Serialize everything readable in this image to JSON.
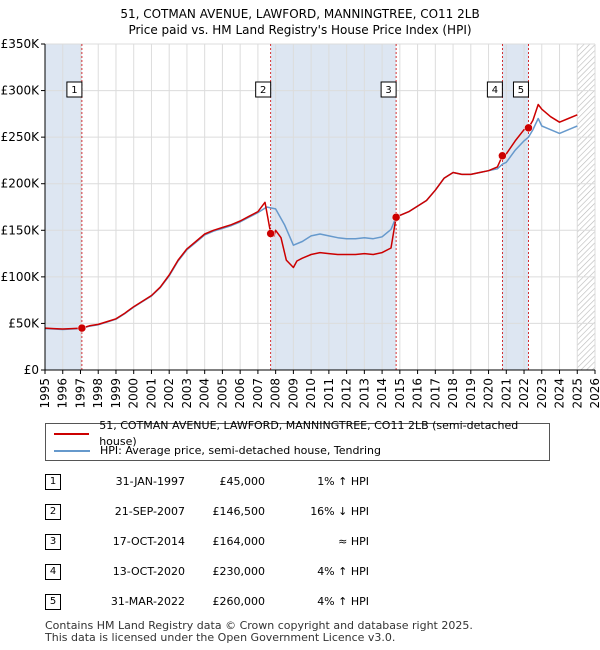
{
  "title_line1": "51, COTMAN AVENUE, LAWFORD, MANNINGTREE, CO11 2LB",
  "title_line2": "Price paid vs. HM Land Registry's House Price Index (HPI)",
  "colors": {
    "property": "#cc0000",
    "hpi": "#6699cc",
    "marker": "#cc0000",
    "shade": "#dde6f2"
  },
  "legend": {
    "property_label": "51, COTMAN AVENUE, LAWFORD, MANNINGTREE, CO11 2LB (semi-detached house)",
    "hpi_label": "HPI: Average price, semi-detached house, Tendring"
  },
  "sales": [
    {
      "num": "1",
      "date": "31-JAN-1997",
      "price": "£45,000",
      "hpi": "1% ↑ HPI"
    },
    {
      "num": "2",
      "date": "21-SEP-2007",
      "price": "£146,500",
      "hpi": "16% ↓ HPI"
    },
    {
      "num": "3",
      "date": "17-OCT-2014",
      "price": "£164,000",
      "hpi": "≈ HPI"
    },
    {
      "num": "4",
      "date": "13-OCT-2020",
      "price": "£230,000",
      "hpi": "4% ↑ HPI"
    },
    {
      "num": "5",
      "date": "31-MAR-2022",
      "price": "£260,000",
      "hpi": "4% ↑ HPI"
    }
  ],
  "footer_line1": "Contains HM Land Registry data © Crown copyright and database right 2025.",
  "footer_line2": "This data is licensed under the Open Government Licence v3.0.",
  "chart_data": {
    "type": "line",
    "xlim": [
      1995,
      2026
    ],
    "ylim": [
      0,
      350000
    ],
    "x_ticks": [
      1995,
      1996,
      1997,
      1998,
      1999,
      2000,
      2001,
      2002,
      2003,
      2004,
      2005,
      2006,
      2007,
      2008,
      2009,
      2010,
      2011,
      2012,
      2013,
      2014,
      2015,
      2016,
      2017,
      2018,
      2019,
      2020,
      2021,
      2022,
      2023,
      2024,
      2025,
      2026
    ],
    "y_ticks": [
      0,
      50000,
      100000,
      150000,
      200000,
      250000,
      300000,
      350000
    ],
    "y_tick_labels": [
      "£0",
      "£50K",
      "£100K",
      "£150K",
      "£200K",
      "£250K",
      "£300K",
      "£350K"
    ],
    "grid": true,
    "shaded_ranges": [
      [
        1995,
        1997.08
      ],
      [
        2007.72,
        2014.79
      ],
      [
        2020.78,
        2022.25
      ],
      [
        2025.0,
        2026
      ]
    ],
    "hatched_range": [
      2025.0,
      2026
    ],
    "sale_points": [
      {
        "num": "1",
        "x": 1997.08,
        "y": 45000
      },
      {
        "num": "2",
        "x": 2007.72,
        "y": 146500
      },
      {
        "num": "3",
        "x": 2014.79,
        "y": 164000
      },
      {
        "num": "4",
        "x": 2020.78,
        "y": 230000
      },
      {
        "num": "5",
        "x": 2022.25,
        "y": 260000
      }
    ],
    "series": [
      {
        "name": "51, COTMAN AVENUE, LAWFORD, MANNINGTREE, CO11 2LB (semi-detached house)",
        "x": [
          1995.0,
          1995.5,
          1996.0,
          1996.5,
          1997.08,
          1997.5,
          1998.0,
          1998.5,
          1999.0,
          1999.5,
          2000.0,
          2000.5,
          2001.0,
          2001.5,
          2002.0,
          2002.5,
          2003.0,
          2003.5,
          2004.0,
          2004.5,
          2005.0,
          2005.5,
          2006.0,
          2006.5,
          2007.0,
          2007.4,
          2007.72,
          2007.9,
          2008.0,
          2008.3,
          2008.6,
          2009.0,
          2009.2,
          2009.5,
          2010.0,
          2010.5,
          2011.0,
          2011.5,
          2012.0,
          2012.5,
          2013.0,
          2013.5,
          2014.0,
          2014.5,
          2014.79,
          2015.0,
          2015.5,
          2016.0,
          2016.5,
          2017.0,
          2017.5,
          2018.0,
          2018.5,
          2019.0,
          2019.5,
          2020.0,
          2020.5,
          2020.78,
          2021.0,
          2021.5,
          2022.0,
          2022.25,
          2022.5,
          2022.8,
          2023.0,
          2023.5,
          2024.0,
          2024.5,
          2025.0
        ],
        "y": [
          45000,
          44500,
          44000,
          44500,
          45000,
          47500,
          49000,
          52000,
          55000,
          61000,
          68000,
          74000,
          80000,
          89000,
          102000,
          118000,
          130000,
          138000,
          146000,
          150000,
          153000,
          156000,
          160000,
          165000,
          170000,
          180000,
          146500,
          144000,
          150000,
          142000,
          118000,
          110000,
          117000,
          120000,
          124000,
          126000,
          125000,
          124000,
          124000,
          124000,
          125000,
          124000,
          126000,
          131000,
          164000,
          166000,
          170000,
          176000,
          182000,
          193000,
          206000,
          212000,
          210000,
          210000,
          212000,
          214000,
          218000,
          230000,
          232000,
          246000,
          258000,
          260000,
          268000,
          285000,
          280000,
          272000,
          266000,
          270000,
          274000
        ]
      },
      {
        "name": "HPI: Average price, semi-detached house, Tendring",
        "x": [
          1995.0,
          1995.5,
          1996.0,
          1996.5,
          1997.0,
          1997.5,
          1998.0,
          1998.5,
          1999.0,
          1999.5,
          2000.0,
          2000.5,
          2001.0,
          2001.5,
          2002.0,
          2002.5,
          2003.0,
          2003.5,
          2004.0,
          2004.5,
          2005.0,
          2005.5,
          2006.0,
          2006.5,
          2007.0,
          2007.5,
          2007.72,
          2008.0,
          2008.5,
          2009.0,
          2009.5,
          2010.0,
          2010.5,
          2011.0,
          2011.5,
          2012.0,
          2012.5,
          2013.0,
          2013.5,
          2014.0,
          2014.5,
          2014.79,
          2015.0,
          2015.5,
          2016.0,
          2016.5,
          2017.0,
          2017.5,
          2018.0,
          2018.5,
          2019.0,
          2019.5,
          2020.0,
          2020.5,
          2020.78,
          2021.0,
          2021.5,
          2022.0,
          2022.25,
          2022.5,
          2022.8,
          2023.0,
          2023.5,
          2024.0,
          2024.5,
          2025.0
        ],
        "y": [
          44500,
          44000,
          43500,
          44000,
          44500,
          47000,
          48500,
          51500,
          54500,
          60500,
          67500,
          73500,
          79500,
          88500,
          101000,
          117000,
          129000,
          137000,
          145000,
          149000,
          152000,
          155000,
          159000,
          164000,
          169000,
          175000,
          174000,
          173000,
          156000,
          134000,
          138000,
          144000,
          146000,
          144000,
          142000,
          141000,
          141000,
          142000,
          141000,
          143000,
          151000,
          164000,
          166000,
          170000,
          176000,
          182000,
          193000,
          206000,
          212000,
          210000,
          210000,
          212000,
          214000,
          216000,
          221000,
          223000,
          236000,
          246000,
          250000,
          258000,
          270000,
          262000,
          258000,
          254000,
          258000,
          262000
        ]
      }
    ]
  }
}
